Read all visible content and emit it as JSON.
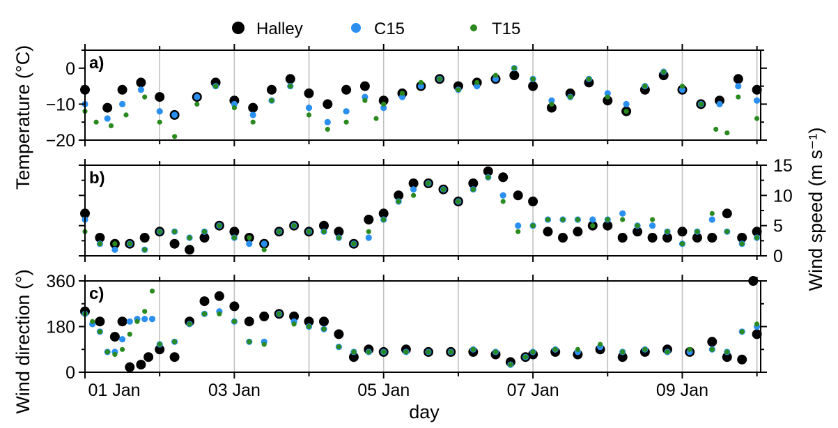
{
  "chart_data": {
    "type": "scatter",
    "legend": {
      "placement": "top-center",
      "entries": [
        {
          "label": "Halley",
          "color": "#000000"
        },
        {
          "label": "C15",
          "color": "#2a8fef"
        },
        {
          "label": "T15",
          "color": "#2b8a1f"
        }
      ]
    },
    "x": {
      "label": "day",
      "range": [
        1,
        10.05
      ],
      "ticks": [
        1,
        3,
        5,
        7,
        9
      ],
      "tick_labels": [
        "01 Jan",
        "03 Jan",
        "05 Jan",
        "07 Jan",
        "09 Jan"
      ],
      "grid": true
    },
    "panels": [
      {
        "label": "a)",
        "ylabel": "Temperature (°C)",
        "ylim": [
          -20,
          5
        ],
        "yticks": [
          -20,
          -10,
          0
        ],
        "ytick_labels": [
          "−20",
          "−10",
          "0"
        ],
        "yaxis_side": "left",
        "series": [
          {
            "name": "Halley",
            "x": [
              1.0,
              1.3,
              1.5,
              1.75,
              2.0,
              2.2,
              2.5,
              2.75,
              3.0,
              3.25,
              3.5,
              3.75,
              4.0,
              4.25,
              4.5,
              4.75,
              5.0,
              5.25,
              5.5,
              5.75,
              6.0,
              6.25,
              6.5,
              6.75,
              7.0,
              7.25,
              7.5,
              7.75,
              8.0,
              8.25,
              8.5,
              8.75,
              9.0,
              9.25,
              9.5,
              9.75,
              10.0
            ],
            "y": [
              -6,
              -11,
              -6,
              -4,
              -8,
              -13,
              -8,
              -4,
              -9,
              -11,
              -6,
              -3,
              -7,
              -10,
              -6,
              -5,
              -9,
              -7,
              -5,
              -3,
              -5,
              -4,
              -3,
              -2,
              -5,
              -11,
              -7,
              -4,
              -9,
              -12,
              -6,
              -2,
              -6,
              -10,
              -9,
              -3,
              -6
            ]
          },
          {
            "name": "C15",
            "x": [
              1.0,
              1.3,
              1.5,
              1.75,
              2.0,
              2.2,
              2.5,
              2.75,
              3.0,
              3.25,
              3.5,
              3.75,
              4.0,
              4.25,
              4.5,
              4.75,
              5.0,
              5.25,
              5.5,
              5.75,
              6.0,
              6.25,
              6.5,
              6.75,
              7.0,
              7.25,
              7.5,
              7.75,
              8.0,
              8.25,
              8.5,
              8.75,
              9.0,
              9.25,
              9.5,
              9.75,
              10.0
            ],
            "y": [
              -10,
              -14,
              -10,
              -6,
              -12,
              -13,
              -8,
              -5,
              -10,
              -13,
              -9,
              -5,
              -11,
              -15,
              -12,
              -8,
              -11,
              -8,
              -5,
              -3,
              -6,
              -5,
              -3,
              0,
              -3,
              -9,
              -8,
              -3,
              -7,
              -10,
              -5,
              -1,
              -6,
              -10,
              -10,
              -5,
              -9
            ]
          },
          {
            "name": "T15",
            "x": [
              1.0,
              1.15,
              1.35,
              1.55,
              1.8,
              2.0,
              2.2,
              2.5,
              2.75,
              3.0,
              3.25,
              3.5,
              3.75,
              4.0,
              4.25,
              4.5,
              4.75,
              4.9,
              5.0,
              5.25,
              5.5,
              5.75,
              6.0,
              6.25,
              6.5,
              6.75,
              7.0,
              7.25,
              7.5,
              7.75,
              8.0,
              8.25,
              8.5,
              8.75,
              9.0,
              9.25,
              9.45,
              9.6,
              9.75,
              10.0
            ],
            "y": [
              -12,
              -15,
              -16,
              -13,
              -8,
              -15,
              -19,
              -10,
              -5,
              -11,
              -15,
              -9,
              -5,
              -13,
              -17,
              -15,
              -9,
              -14,
              -10,
              -7,
              -4,
              -3,
              -6,
              -4,
              -2,
              0,
              -3,
              -10,
              -8,
              -3,
              -8,
              -12,
              -5,
              -1,
              -5,
              -10,
              -17,
              -18,
              -8,
              -14
            ]
          }
        ]
      },
      {
        "label": "b)",
        "ylabel": "Wind speed (m s⁻¹)",
        "ylim": [
          0,
          15
        ],
        "yticks": [
          0,
          5,
          10,
          15
        ],
        "ytick_labels": [
          "0",
          "5",
          "10",
          "15"
        ],
        "yaxis_side": "right",
        "series": [
          {
            "name": "Halley",
            "x": [
              1.0,
              1.2,
              1.4,
              1.6,
              1.8,
              2.0,
              2.2,
              2.4,
              2.6,
              2.8,
              3.0,
              3.2,
              3.4,
              3.6,
              3.8,
              4.0,
              4.2,
              4.4,
              4.6,
              4.8,
              5.0,
              5.2,
              5.4,
              5.6,
              5.8,
              6.0,
              6.2,
              6.4,
              6.6,
              6.8,
              7.0,
              7.2,
              7.4,
              7.6,
              7.8,
              8.0,
              8.2,
              8.4,
              8.6,
              8.8,
              9.0,
              9.2,
              9.4,
              9.6,
              9.8,
              10.0
            ],
            "y": [
              7,
              3,
              2,
              2,
              3,
              4,
              2,
              1,
              3,
              5,
              4,
              3,
              2,
              4,
              5,
              4,
              5,
              4,
              2,
              6,
              7,
              10,
              12,
              12,
              11,
              9,
              12,
              14,
              13,
              10,
              9,
              4,
              3,
              4,
              5,
              5,
              3,
              4,
              3,
              3,
              4,
              3,
              3,
              7,
              3,
              4
            ]
          },
          {
            "name": "C15",
            "x": [
              1.0,
              1.2,
              1.4,
              1.6,
              1.8,
              2.0,
              2.2,
              2.4,
              2.6,
              2.8,
              3.0,
              3.2,
              3.4,
              3.6,
              3.8,
              4.0,
              4.2,
              4.4,
              4.6,
              4.8,
              5.0,
              5.2,
              5.4,
              5.6,
              5.8,
              6.0,
              6.2,
              6.4,
              6.6,
              6.8,
              7.0,
              7.2,
              7.4,
              7.6,
              7.8,
              8.0,
              8.2,
              8.4,
              8.6,
              8.8,
              9.0,
              9.2,
              9.4,
              9.6,
              9.8,
              10.0
            ],
            "y": [
              6,
              2,
              1,
              2,
              1,
              4,
              4,
              3,
              4,
              5,
              3,
              2,
              2,
              4,
              5,
              4,
              4,
              3,
              2,
              3,
              6,
              9,
              11,
              12,
              11,
              9,
              11,
              13,
              10,
              5,
              5,
              6,
              6,
              6,
              6,
              6,
              7,
              5,
              5,
              4,
              2,
              4,
              6,
              4,
              2,
              3
            ]
          },
          {
            "name": "T15",
            "x": [
              1.0,
              1.2,
              1.4,
              1.6,
              1.8,
              2.0,
              2.2,
              2.4,
              2.6,
              2.8,
              3.0,
              3.2,
              3.4,
              3.6,
              3.8,
              4.0,
              4.2,
              4.4,
              4.6,
              4.8,
              5.0,
              5.2,
              5.4,
              5.6,
              5.8,
              6.0,
              6.2,
              6.4,
              6.6,
              6.8,
              7.0,
              7.2,
              7.4,
              7.6,
              7.8,
              8.0,
              8.2,
              8.4,
              8.6,
              8.8,
              9.0,
              9.2,
              9.4,
              9.6,
              9.8,
              10.0
            ],
            "y": [
              4,
              2,
              2,
              2,
              1,
              4,
              4,
              3,
              4,
              5,
              3,
              3,
              1,
              4,
              5,
              4,
              4,
              3,
              2,
              4,
              6,
              9,
              10,
              12,
              11,
              9,
              11,
              13,
              9,
              4,
              5,
              6,
              6,
              6,
              5,
              6,
              6,
              5,
              6,
              4,
              2,
              4,
              7,
              4,
              2,
              3
            ]
          }
        ]
      },
      {
        "label": "c)",
        "ylabel": "Wind direction (°)",
        "ylim": [
          0,
          360
        ],
        "yticks": [
          0,
          180,
          360
        ],
        "ytick_labels": [
          "0",
          "180",
          "360"
        ],
        "yaxis_side": "left",
        "series": [
          {
            "name": "Halley",
            "x": [
              1.0,
              1.2,
              1.4,
              1.5,
              1.6,
              1.75,
              1.85,
              2.0,
              2.2,
              2.4,
              2.6,
              2.8,
              3.0,
              3.2,
              3.4,
              3.6,
              3.8,
              4.0,
              4.2,
              4.4,
              4.6,
              4.8,
              5.0,
              5.3,
              5.6,
              5.9,
              6.2,
              6.5,
              6.7,
              6.9,
              7.0,
              7.3,
              7.6,
              7.9,
              8.2,
              8.5,
              8.8,
              9.1,
              9.4,
              9.6,
              9.8,
              9.95,
              10.0
            ],
            "y": [
              240,
              200,
              140,
              200,
              20,
              30,
              60,
              90,
              60,
              200,
              280,
              300,
              260,
              200,
              220,
              230,
              220,
              200,
              200,
              150,
              60,
              90,
              80,
              90,
              80,
              80,
              80,
              70,
              40,
              60,
              70,
              80,
              70,
              90,
              60,
              80,
              90,
              80,
              120,
              60,
              50,
              360,
              150
            ]
          },
          {
            "name": "C15",
            "x": [
              1.0,
              1.1,
              1.2,
              1.3,
              1.4,
              1.5,
              1.6,
              1.7,
              1.8,
              1.9,
              2.0,
              2.2,
              2.4,
              2.6,
              2.8,
              3.0,
              3.2,
              3.4,
              3.6,
              3.8,
              4.0,
              4.2,
              4.4,
              4.6,
              4.8,
              5.0,
              5.3,
              5.6,
              5.9,
              6.2,
              6.5,
              6.7,
              6.9,
              7.0,
              7.3,
              7.6,
              7.9,
              8.2,
              8.5,
              8.8,
              9.1,
              9.4,
              9.6,
              9.8,
              10.0
            ],
            "y": [
              230,
              190,
              160,
              80,
              80,
              130,
              200,
              210,
              210,
              210,
              110,
              120,
              190,
              230,
              240,
              200,
              120,
              120,
              230,
              200,
              180,
              170,
              100,
              80,
              80,
              80,
              80,
              80,
              80,
              90,
              80,
              30,
              60,
              80,
              90,
              80,
              100,
              80,
              90,
              80,
              80,
              90,
              80,
              160,
              180
            ]
          },
          {
            "name": "T15",
            "x": [
              1.0,
              1.1,
              1.2,
              1.3,
              1.4,
              1.5,
              1.6,
              1.7,
              1.8,
              1.9,
              2.0,
              2.2,
              2.4,
              2.6,
              2.8,
              3.0,
              3.2,
              3.4,
              3.6,
              3.8,
              4.0,
              4.2,
              4.4,
              4.6,
              4.8,
              5.0,
              5.3,
              5.6,
              5.9,
              6.2,
              6.5,
              6.7,
              6.9,
              7.0,
              7.3,
              7.6,
              7.9,
              8.2,
              8.5,
              8.8,
              9.1,
              9.4,
              9.6,
              9.8,
              10.0
            ],
            "y": [
              230,
              200,
              160,
              80,
              70,
              90,
              150,
              200,
              240,
              320,
              110,
              120,
              190,
              230,
              230,
              200,
              120,
              110,
              230,
              190,
              180,
              170,
              100,
              80,
              80,
              80,
              80,
              80,
              80,
              90,
              80,
              30,
              60,
              80,
              90,
              90,
              110,
              80,
              90,
              80,
              90,
              90,
              80,
              160,
              190
            ]
          }
        ]
      }
    ]
  }
}
